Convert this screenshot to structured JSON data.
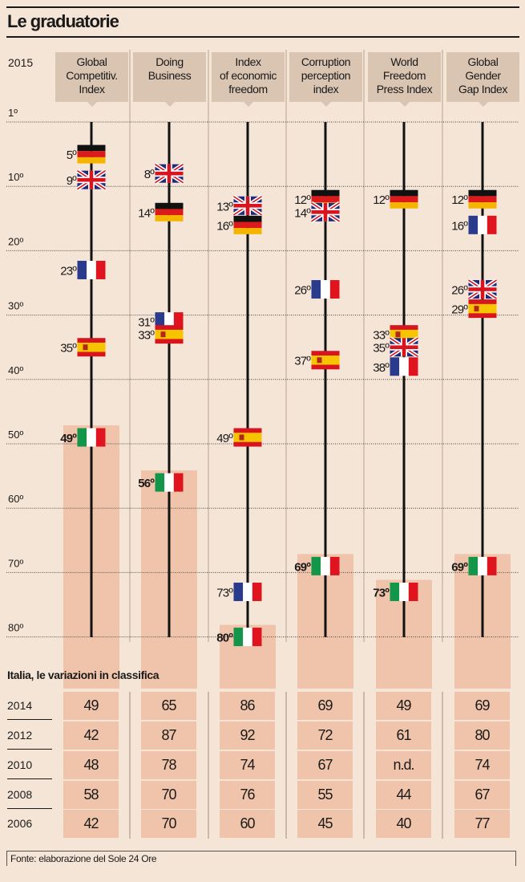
{
  "title": "Le graduatorie",
  "year": "2015",
  "subtitle": "Italia, le variazioni in classifica",
  "footer": "Fonte: elaborazione del Sole 24 Ore",
  "colors": {
    "background": "#f5e5d6",
    "header_box": "#d9c5b1",
    "italy_bar": "#f0c4aa"
  },
  "chart_data": {
    "type": "table",
    "title": "Le graduatorie",
    "axis_ticks": [
      "1º",
      "10º",
      "20º",
      "30º",
      "40º",
      "50º",
      "60º",
      "70º",
      "80º"
    ],
    "axis_values": [
      1,
      10,
      20,
      30,
      40,
      50,
      60,
      70,
      80
    ],
    "ylim": [
      1,
      80
    ],
    "indices": [
      {
        "name": "Global Competitiv. Index",
        "lines": [
          "Global",
          "Competitiv.",
          "Index"
        ],
        "ranks": [
          {
            "country": "germany",
            "rank": 5,
            "label": "5º"
          },
          {
            "country": "uk",
            "rank": 9,
            "label": "9º"
          },
          {
            "country": "france",
            "rank": 23,
            "label": "23º"
          },
          {
            "country": "spain",
            "rank": 35,
            "label": "35º"
          },
          {
            "country": "italy",
            "rank": 49,
            "label": "49º"
          }
        ]
      },
      {
        "name": "Doing Business",
        "lines": [
          "Doing",
          "Business"
        ],
        "ranks": [
          {
            "country": "uk",
            "rank": 8,
            "label": "8º"
          },
          {
            "country": "germany",
            "rank": 14,
            "label": "14º"
          },
          {
            "country": "france",
            "rank": 31,
            "label": "31º"
          },
          {
            "country": "spain",
            "rank": 33,
            "label": "33º"
          },
          {
            "country": "italy",
            "rank": 56,
            "label": "56º"
          }
        ]
      },
      {
        "name": "Index of economic freedom",
        "lines": [
          "Index",
          "of economic",
          "freedom"
        ],
        "ranks": [
          {
            "country": "uk",
            "rank": 13,
            "label": "13º"
          },
          {
            "country": "germany",
            "rank": 16,
            "label": "16º"
          },
          {
            "country": "spain",
            "rank": 49,
            "label": "49º"
          },
          {
            "country": "france",
            "rank": 73,
            "label": "73º"
          },
          {
            "country": "italy",
            "rank": 80,
            "label": "80º"
          }
        ]
      },
      {
        "name": "Corruption perception index",
        "lines": [
          "Corruption",
          "perception",
          "index"
        ],
        "ranks": [
          {
            "country": "germany",
            "rank": 12,
            "label": "12º"
          },
          {
            "country": "uk",
            "rank": 14,
            "label": "14º"
          },
          {
            "country": "france",
            "rank": 26,
            "label": "26º"
          },
          {
            "country": "spain",
            "rank": 37,
            "label": "37º"
          },
          {
            "country": "italy",
            "rank": 69,
            "label": "69º"
          }
        ]
      },
      {
        "name": "World Freedom Press Index",
        "lines": [
          "World",
          "Freedom",
          "Press Index"
        ],
        "ranks": [
          {
            "country": "germany",
            "rank": 12,
            "label": "12º"
          },
          {
            "country": "spain",
            "rank": 33,
            "label": "33º"
          },
          {
            "country": "uk",
            "rank": 35,
            "label": "35º"
          },
          {
            "country": "france",
            "rank": 38,
            "label": "38º"
          },
          {
            "country": "italy",
            "rank": 73,
            "label": "73º"
          }
        ]
      },
      {
        "name": "Global Gender Gap Index",
        "lines": [
          "Global",
          "Gender",
          "Gap Index"
        ],
        "ranks": [
          {
            "country": "germany",
            "rank": 12,
            "label": "12º"
          },
          {
            "country": "france",
            "rank": 16,
            "label": "16º"
          },
          {
            "country": "uk",
            "rank": 26,
            "label": "26º"
          },
          {
            "country": "spain",
            "rank": 29,
            "label": "29º"
          },
          {
            "country": "italy",
            "rank": 69,
            "label": "69º"
          }
        ]
      }
    ],
    "italy_history": {
      "years": [
        "2014",
        "2012",
        "2010",
        "2008",
        "2006"
      ],
      "values": [
        [
          "49",
          "65",
          "86",
          "69",
          "49",
          "69"
        ],
        [
          "42",
          "87",
          "92",
          "72",
          "61",
          "80"
        ],
        [
          "48",
          "78",
          "74",
          "67",
          "n.d.",
          "74"
        ],
        [
          "58",
          "70",
          "76",
          "55",
          "44",
          "67"
        ],
        [
          "42",
          "70",
          "60",
          "45",
          "40",
          "77"
        ]
      ]
    }
  }
}
